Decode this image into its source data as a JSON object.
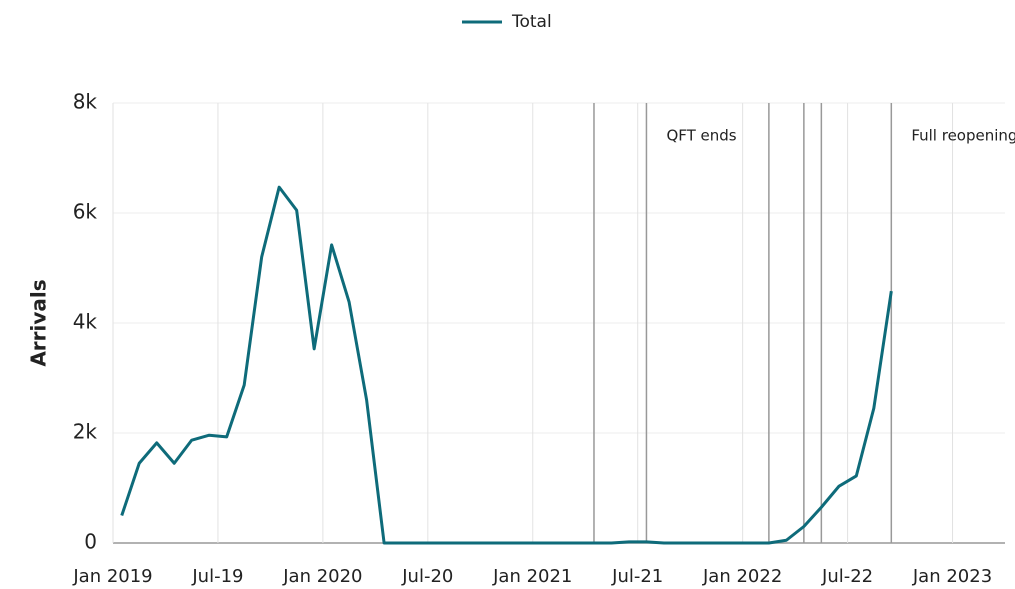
{
  "chart_data": {
    "type": "line",
    "y_label": "Arrivals",
    "x": [
      "2019-01",
      "2019-02",
      "2019-03",
      "2019-04",
      "2019-05",
      "2019-06",
      "2019-07",
      "2019-08",
      "2019-09",
      "2019-10",
      "2019-11",
      "2019-12",
      "2020-01",
      "2020-02",
      "2020-03",
      "2020-04",
      "2020-05",
      "2020-06",
      "2020-07",
      "2020-08",
      "2020-09",
      "2020-10",
      "2020-11",
      "2020-12",
      "2021-01",
      "2021-02",
      "2021-03",
      "2021-04",
      "2021-05",
      "2021-06",
      "2021-07",
      "2021-08",
      "2021-09",
      "2021-10",
      "2021-11",
      "2021-12",
      "2022-01",
      "2022-02",
      "2022-03",
      "2022-04",
      "2022-05",
      "2022-06",
      "2022-07",
      "2022-08",
      "2022-09"
    ],
    "series": [
      {
        "name": "Total",
        "color": "#0e6b7a",
        "values": [
          500,
          1450,
          1820,
          1450,
          1870,
          1960,
          1930,
          2870,
          5200,
          6470,
          6050,
          3530,
          5420,
          4380,
          2600,
          0,
          0,
          0,
          0,
          0,
          0,
          0,
          0,
          0,
          0,
          0,
          0,
          0,
          0,
          20,
          20,
          0,
          0,
          0,
          0,
          0,
          0,
          0,
          50,
          300,
          650,
          1030,
          1220,
          2450,
          4580
        ]
      }
    ],
    "xlim": [
      "2019-01",
      "2023-04"
    ],
    "xticks": [
      {
        "value": "2019-01",
        "label": "Jan 2019"
      },
      {
        "value": "2019-07",
        "label": "Jul-19"
      },
      {
        "value": "2020-01",
        "label": "Jan 2020"
      },
      {
        "value": "2020-07",
        "label": "Jul-20"
      },
      {
        "value": "2021-01",
        "label": "Jan 2021"
      },
      {
        "value": "2021-07",
        "label": "Jul-21"
      },
      {
        "value": "2022-01",
        "label": "Jan 2022"
      },
      {
        "value": "2022-07",
        "label": "Jul-22"
      },
      {
        "value": "2023-01",
        "label": "Jan 2023"
      }
    ],
    "ylim": [
      0,
      8000
    ],
    "yticks": [
      0,
      {
        "value": 2000,
        "label": "2k"
      },
      {
        "value": 4000,
        "label": "4k"
      },
      {
        "value": 6000,
        "label": "6k"
      },
      {
        "value": 8000,
        "label": "8k"
      }
    ],
    "grid": true,
    "legend": "top",
    "vlines": [
      "2021-04",
      "2022-02",
      "2022-04",
      "2022-05"
    ],
    "annotations": [
      {
        "x": "2021-07",
        "text": "QFT ends"
      },
      {
        "x": "2022-09",
        "text": "Full reopening"
      }
    ]
  }
}
